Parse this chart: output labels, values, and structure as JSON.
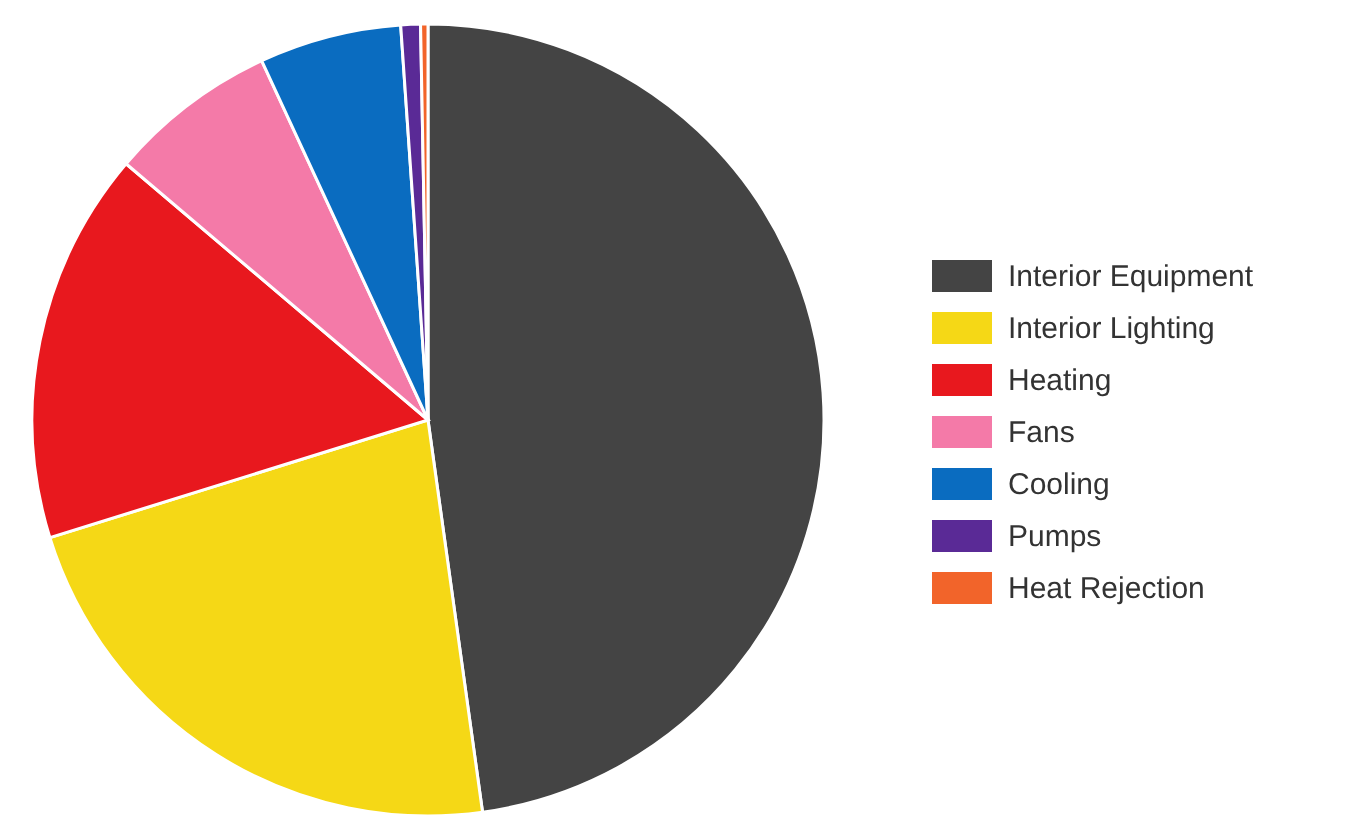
{
  "chart_data": {
    "type": "pie",
    "categories": [
      "Interior Equipment",
      "Interior Lighting",
      "Heating",
      "Fans",
      "Cooling",
      "Pumps",
      "Heat Rejection"
    ],
    "values": [
      47.8,
      22.4,
      16.0,
      6.9,
      5.8,
      0.8,
      0.3
    ],
    "colors": [
      "#444444",
      "#f5d816",
      "#e8181e",
      "#f47aa8",
      "#0a6cc0",
      "#5a2a96",
      "#f2642a"
    ],
    "legend": "right"
  }
}
